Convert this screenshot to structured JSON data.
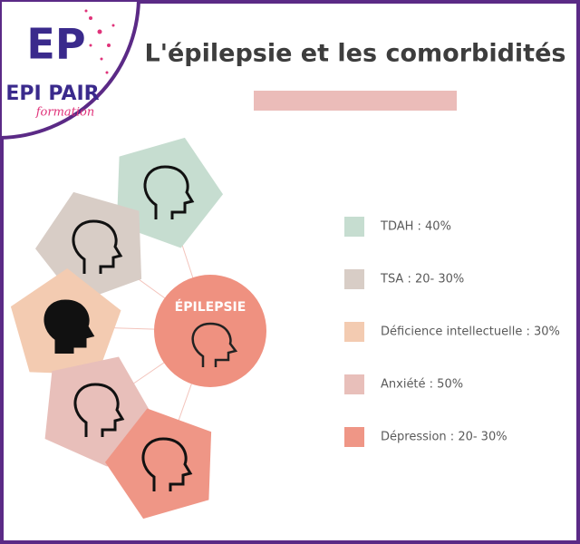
{
  "logo": {
    "monogram": "EP",
    "name": "EPI PAIR",
    "tagline": "formation"
  },
  "header": {
    "title": "L'épilepsie et les comorbidités"
  },
  "center": {
    "label": "ÉPILEPSIE"
  },
  "legend": [
    {
      "label": "TDAH : 40%",
      "color": "#c6ddd0"
    },
    {
      "label": "TSA : 20- 30%",
      "color": "#d8cdc6"
    },
    {
      "label": "Déficience intellectuelle : 30%",
      "color": "#f3cbb1"
    },
    {
      "label": "Anxiété : 50%",
      "color": "#e8bfba"
    },
    {
      "label": "Dépression : 20- 30%",
      "color": "#ef9686"
    }
  ]
}
